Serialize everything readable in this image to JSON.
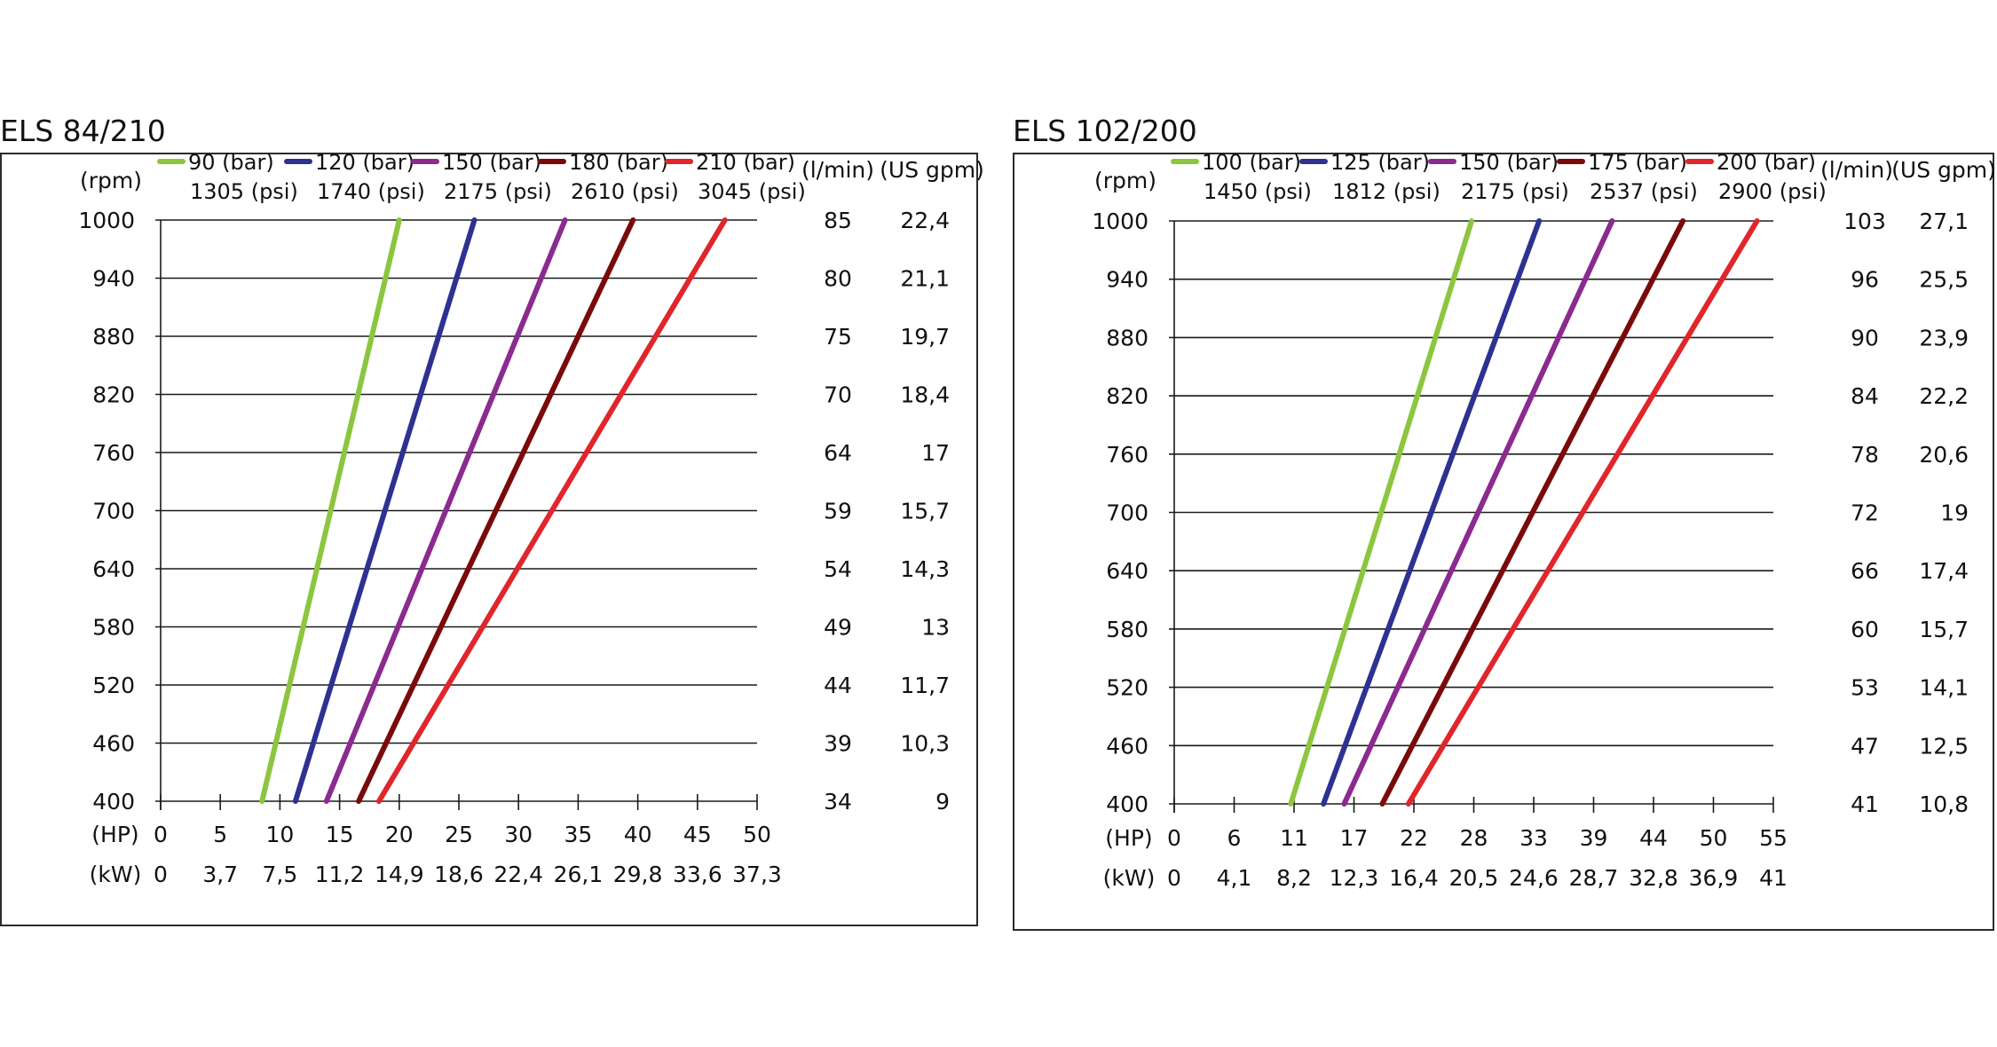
{
  "chart_data": [
    {
      "type": "line",
      "title": "ELS 84/210",
      "y_unit": "(rpm)",
      "y_ticks": [
        1000,
        940,
        880,
        820,
        760,
        700,
        640,
        580,
        520,
        460,
        400
      ],
      "ylim": [
        400,
        1000
      ],
      "hp_unit": "(HP)",
      "hp_ticks": [
        "0",
        "5",
        "10",
        "15",
        "20",
        "25",
        "30",
        "35",
        "40",
        "45",
        "50"
      ],
      "kw_unit": "(kW)",
      "kw_ticks": [
        "0",
        "3,7",
        "7,5",
        "11,2",
        "14,9",
        "18,6",
        "22,4",
        "26,1",
        "29,8",
        "33,6",
        "37,3"
      ],
      "xlim": [
        0,
        50
      ],
      "flow_unit": "(l/min)",
      "flow_values": [
        "85",
        "80",
        "75",
        "70",
        "64",
        "59",
        "54",
        "49",
        "44",
        "39",
        "34"
      ],
      "gpm_unit": "(US gpm)",
      "gpm_values": [
        "22,4",
        "21,1",
        "19,7",
        "18,4",
        "17",
        "15,7",
        "14,3",
        "13",
        "11,7",
        "10,3",
        "9"
      ],
      "grid": true,
      "legend_position": "top",
      "series": [
        {
          "name": "90 (bar)",
          "psi": "1305 (psi)",
          "color": "#8cc63f",
          "x": [
            8.5,
            20.0
          ],
          "y": [
            400,
            1000
          ]
        },
        {
          "name": "120 (bar)",
          "psi": "1740 (psi)",
          "color": "#2e3192",
          "x": [
            11.3,
            26.3
          ],
          "y": [
            400,
            1000
          ]
        },
        {
          "name": "150 (bar)",
          "psi": "2175 (psi)",
          "color": "#8b2a8f",
          "x": [
            13.9,
            33.9
          ],
          "y": [
            400,
            1000
          ]
        },
        {
          "name": "180 (bar)",
          "psi": "2610 (psi)",
          "color": "#7a0a0a",
          "x": [
            16.6,
            39.6
          ],
          "y": [
            400,
            1000
          ]
        },
        {
          "name": "210 (bar)",
          "psi": "3045 (psi)",
          "color": "#e0262b",
          "x": [
            18.3,
            47.3
          ],
          "y": [
            400,
            1000
          ]
        }
      ]
    },
    {
      "type": "line",
      "title": "ELS 102/200",
      "y_unit": "(rpm)",
      "y_ticks": [
        1000,
        940,
        880,
        820,
        760,
        700,
        640,
        580,
        520,
        460,
        400
      ],
      "ylim": [
        400,
        1000
      ],
      "hp_unit": "(HP)",
      "hp_ticks": [
        "0",
        "6",
        "11",
        "17",
        "22",
        "28",
        "33",
        "39",
        "44",
        "50",
        "55"
      ],
      "kw_unit": "(kW)",
      "kw_ticks": [
        "0",
        "4,1",
        "8,2",
        "12,3",
        "16,4",
        "20,5",
        "24,6",
        "28,7",
        "32,8",
        "36,9",
        "41"
      ],
      "xlim": [
        0,
        55
      ],
      "flow_unit": "(l/min)",
      "flow_values": [
        "103",
        "96",
        "90",
        "84",
        "78",
        "72",
        "66",
        "60",
        "53",
        "47",
        "41"
      ],
      "gpm_unit": "(US gpm)",
      "gpm_values": [
        "27,1",
        "25,5",
        "23,9",
        "22,2",
        "20,6",
        "19",
        "17,4",
        "15,7",
        "14,1",
        "12,5",
        "10,8"
      ],
      "grid": true,
      "legend_position": "top",
      "series": [
        {
          "name": "100 (bar)",
          "psi": "1450 (psi)",
          "color": "#8cc63f",
          "x": [
            10.7,
            27.3
          ],
          "y": [
            400,
            1000
          ]
        },
        {
          "name": "125 (bar)",
          "psi": "1812 (psi)",
          "color": "#2e3192",
          "x": [
            13.7,
            33.5
          ],
          "y": [
            400,
            1000
          ]
        },
        {
          "name": "150 (bar)",
          "psi": "2175 (psi)",
          "color": "#8b2a8f",
          "x": [
            15.6,
            40.2
          ],
          "y": [
            400,
            1000
          ]
        },
        {
          "name": "175 (bar)",
          "psi": "2537 (psi)",
          "color": "#7a0a0a",
          "x": [
            19.1,
            46.7
          ],
          "y": [
            400,
            1000
          ]
        },
        {
          "name": "200 (bar)",
          "psi": "2900 (psi)",
          "color": "#e0262b",
          "x": [
            21.5,
            53.5
          ],
          "y": [
            400,
            1000
          ]
        }
      ]
    }
  ]
}
